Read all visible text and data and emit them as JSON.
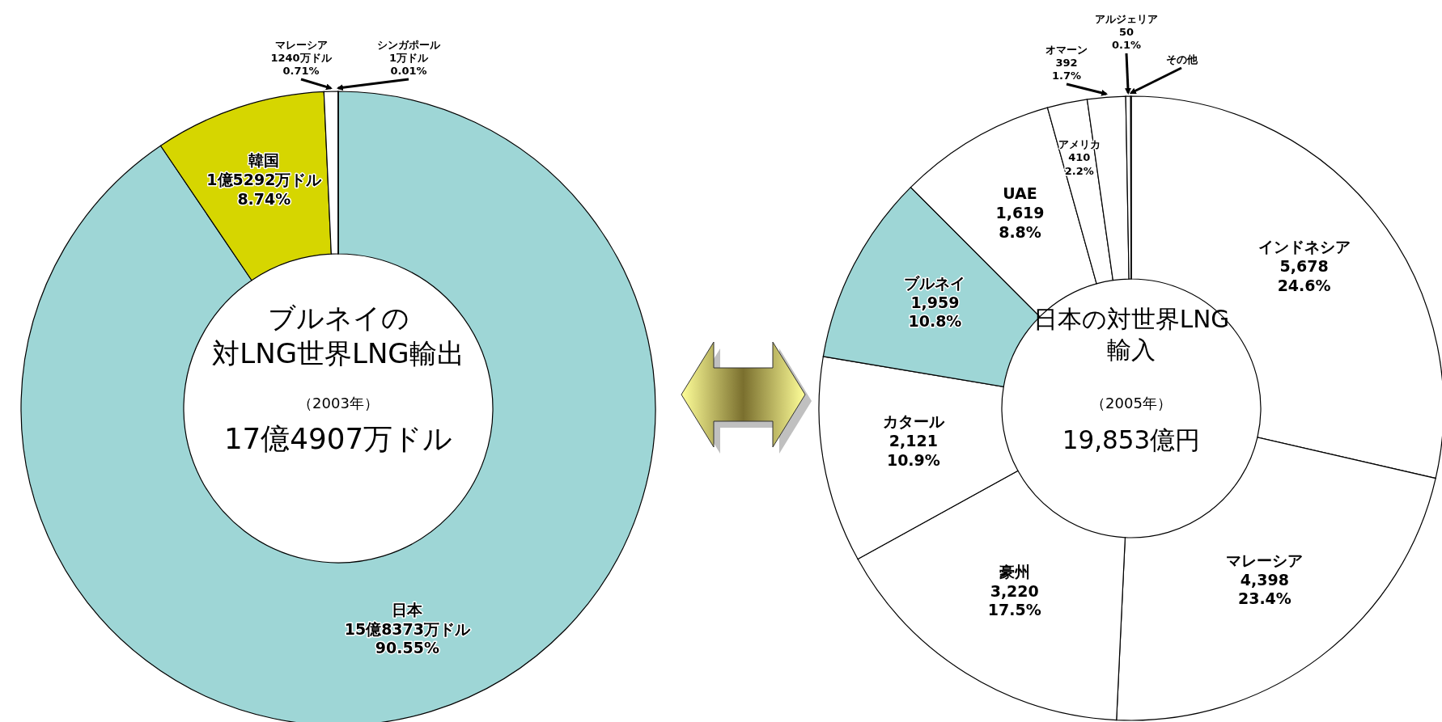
{
  "chart_data": [
    {
      "type": "donut",
      "title": "ブルネイの",
      "subtitle": "対LNG世界LNG輸出",
      "annotations": [
        "（2003年）",
        "17億4907万ドル"
      ],
      "categories": [
        "日本",
        "韓国",
        "マレーシア",
        "シンガポール"
      ],
      "values": [
        90.55,
        8.74,
        0.71,
        0.01
      ],
      "colors": [
        "#9ed6d6",
        "#d6d600",
        "#ffffff",
        "#ffffff"
      ],
      "value_labels": [
        "15億8373万ドル\n90.55%",
        "1億5292万ドル\n8.74%",
        "1240万ドル\n0.71%",
        "1万ドル\n0.01%"
      ]
    },
    {
      "type": "donut",
      "title": "日本の対世界LNG",
      "subtitle": "輸入",
      "annotations": [
        "（2005年）",
        "19,853億円"
      ],
      "categories": [
        "インドネシア",
        "マレーシア",
        "豪州",
        "カタール",
        "ブルネイ",
        "UAE",
        "アメリカ",
        "オマーン",
        "アルジェリア",
        "その他"
      ],
      "values": [
        5678,
        4398,
        3220,
        2121,
        1959,
        1619,
        410,
        392,
        50,
        6
      ],
      "colors": [
        "#ffffff",
        "#ffffff",
        "#ffffff",
        "#ffffff",
        "#9ed6d6",
        "#ffffff",
        "#ffffff",
        "#ffffff",
        "#ffffff",
        "#ffffff"
      ],
      "value_labels": [
        "5,678\n24.6%",
        "4,398\n23.4%",
        "3,220\n17.5%",
        "2,121\n10.9%",
        "1,959\n10.8%",
        "1,619\n8.8%",
        "410\n2.2%",
        "392\n1.7%",
        "50\n0.1%",
        null
      ]
    }
  ]
}
